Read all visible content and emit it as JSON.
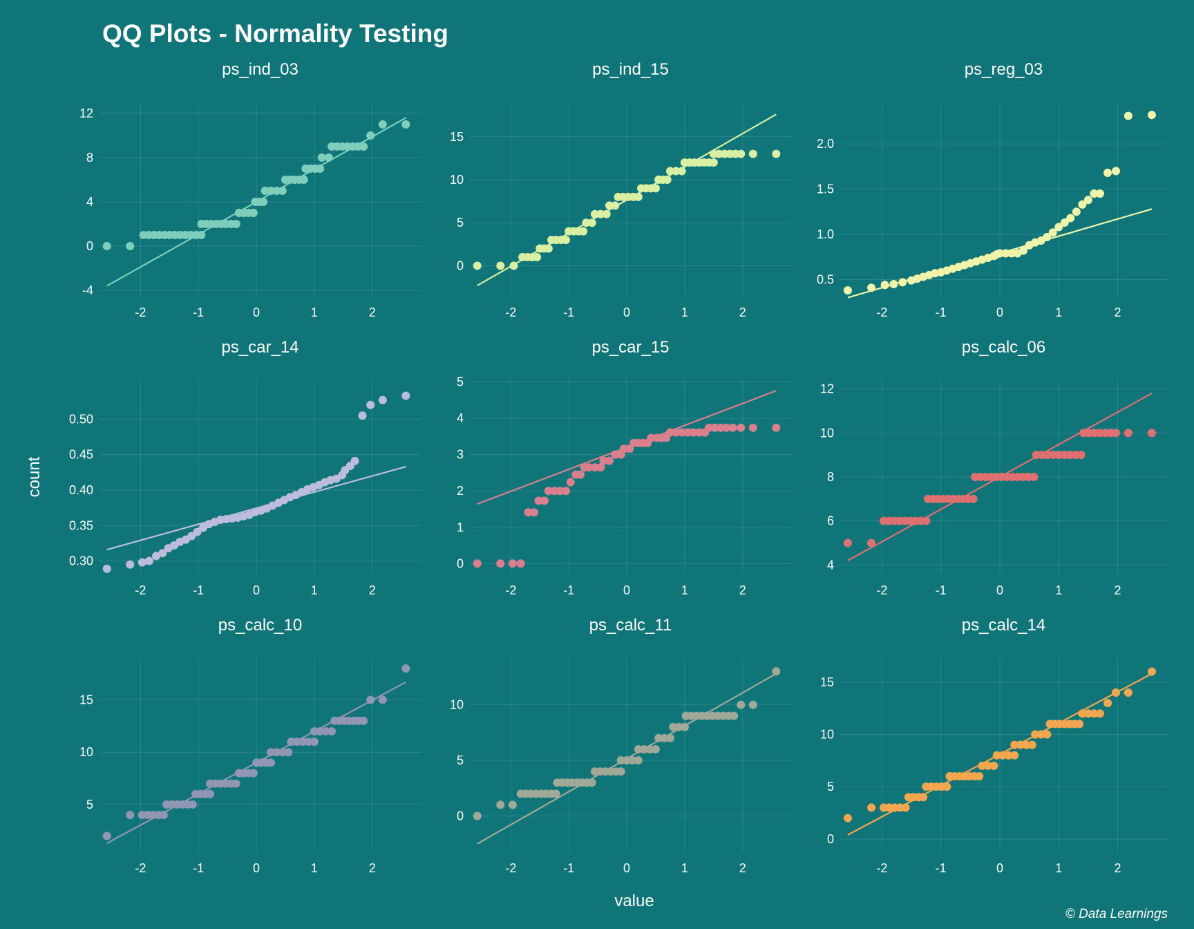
{
  "title": "QQ Plots - Normality Testing",
  "xlabel": "value",
  "ylabel": "count",
  "caption": "© Data Learnings",
  "chart_data": [
    {
      "type": "scatter",
      "title": "ps_ind_03",
      "color": "#7fcdbb",
      "xlim": [
        -2.72,
        2.85
      ],
      "ylim": [
        -4.5,
        13
      ],
      "xticks": [
        -2,
        -1,
        0,
        1,
        2
      ],
      "yticks": [
        -4,
        0,
        4,
        8,
        12
      ],
      "ytick_labels": [
        "-4",
        "0",
        "4",
        "8",
        "12"
      ],
      "line": [
        [
          -2.58,
          -3.6
        ],
        [
          2.58,
          11.6
        ]
      ],
      "steps": [
        [
          -2.58,
          -2.58,
          0
        ],
        [
          -2.18,
          -2.18,
          0
        ],
        [
          -1.95,
          -0.95,
          1
        ],
        [
          -0.95,
          -0.35,
          2
        ],
        [
          -0.3,
          -0.05,
          3
        ],
        [
          -0.02,
          0.12,
          4
        ],
        [
          0.15,
          0.45,
          5
        ],
        [
          0.5,
          0.82,
          6
        ],
        [
          0.85,
          1.1,
          7
        ],
        [
          1.13,
          1.25,
          8
        ],
        [
          1.3,
          1.85,
          9
        ],
        [
          1.97,
          1.97,
          10
        ],
        [
          2.18,
          2.18,
          11
        ],
        [
          2.58,
          2.58,
          11
        ]
      ]
    },
    {
      "type": "scatter",
      "title": "ps_ind_15",
      "color": "#d9f0a3",
      "xlim": [
        -2.72,
        2.85
      ],
      "ylim": [
        -3.5,
        19
      ],
      "xticks": [
        -2,
        -1,
        0,
        1,
        2
      ],
      "yticks": [
        0,
        5,
        10,
        15
      ],
      "ytick_labels": [
        "0",
        "5",
        "10",
        "15"
      ],
      "line": [
        [
          -2.58,
          -2.3
        ],
        [
          2.58,
          17.6
        ]
      ],
      "steps": [
        [
          -2.58,
          -2.58,
          0
        ],
        [
          -2.18,
          -2.18,
          0
        ],
        [
          -1.95,
          -1.95,
          0
        ],
        [
          -1.8,
          -1.55,
          1
        ],
        [
          -1.5,
          -1.35,
          2
        ],
        [
          -1.3,
          -1.05,
          3
        ],
        [
          -1.0,
          -0.75,
          4
        ],
        [
          -0.7,
          -0.6,
          5
        ],
        [
          -0.55,
          -0.35,
          6
        ],
        [
          -0.3,
          -0.2,
          7
        ],
        [
          -0.15,
          0.2,
          8
        ],
        [
          0.25,
          0.5,
          9
        ],
        [
          0.55,
          0.7,
          10
        ],
        [
          0.75,
          0.95,
          11
        ],
        [
          1.0,
          1.5,
          12
        ],
        [
          1.5,
          1.97,
          13
        ],
        [
          2.18,
          2.18,
          13
        ],
        [
          2.58,
          2.58,
          13
        ]
      ]
    },
    {
      "type": "scatter",
      "title": "ps_reg_03",
      "color": "#f0f4a8",
      "xlim": [
        -2.72,
        2.85
      ],
      "ylim": [
        0.32,
        2.46
      ],
      "xticks": [
        -2,
        -1,
        0,
        1,
        2
      ],
      "yticks": [
        0.5,
        1.0,
        1.5,
        2.0
      ],
      "ytick_labels": [
        "0.5",
        "1.0",
        "1.5",
        "2.0"
      ],
      "line": [
        [
          -2.58,
          0.3
        ],
        [
          2.58,
          1.28
        ]
      ],
      "points": [
        [
          -2.58,
          0.38
        ],
        [
          -2.18,
          0.41
        ],
        [
          -1.95,
          0.44
        ],
        [
          -1.8,
          0.45
        ],
        [
          -1.65,
          0.47
        ],
        [
          -1.5,
          0.49
        ],
        [
          -1.4,
          0.51
        ],
        [
          -1.3,
          0.53
        ],
        [
          -1.2,
          0.55
        ],
        [
          -1.1,
          0.57
        ],
        [
          -1.0,
          0.58
        ],
        [
          -0.9,
          0.6
        ],
        [
          -0.8,
          0.62
        ],
        [
          -0.7,
          0.64
        ],
        [
          -0.6,
          0.66
        ],
        [
          -0.5,
          0.68
        ],
        [
          -0.4,
          0.7
        ],
        [
          -0.3,
          0.72
        ],
        [
          -0.2,
          0.74
        ],
        [
          -0.1,
          0.76
        ],
        [
          -0.05,
          0.78
        ],
        [
          0.0,
          0.79
        ],
        [
          0.1,
          0.79
        ],
        [
          0.2,
          0.79
        ],
        [
          0.3,
          0.79
        ],
        [
          0.4,
          0.82
        ],
        [
          0.5,
          0.88
        ],
        [
          0.6,
          0.91
        ],
        [
          0.7,
          0.93
        ],
        [
          0.8,
          0.97
        ],
        [
          0.9,
          1.02
        ],
        [
          1.0,
          1.08
        ],
        [
          1.1,
          1.13
        ],
        [
          1.2,
          1.18
        ],
        [
          1.3,
          1.25
        ],
        [
          1.4,
          1.33
        ],
        [
          1.5,
          1.38
        ],
        [
          1.6,
          1.45
        ],
        [
          1.7,
          1.45
        ],
        [
          1.83,
          1.68
        ],
        [
          1.97,
          1.7
        ],
        [
          2.18,
          2.31
        ],
        [
          2.58,
          2.32
        ]
      ]
    },
    {
      "type": "scatter",
      "title": "ps_car_14",
      "color": "#bcbddc",
      "xlim": [
        -2.72,
        2.85
      ],
      "ylim": [
        0.282,
        0.555
      ],
      "xticks": [
        -2,
        -1,
        0,
        1,
        2
      ],
      "yticks": [
        0.3,
        0.35,
        0.4,
        0.45,
        0.5
      ],
      "ytick_labels": [
        "0.30",
        "0.35",
        "0.40",
        "0.45",
        "0.50"
      ],
      "line": [
        [
          -2.58,
          0.316
        ],
        [
          2.58,
          0.433
        ]
      ],
      "points": [
        [
          -2.58,
          0.289
        ],
        [
          -2.18,
          0.295
        ],
        [
          -1.97,
          0.298
        ],
        [
          -1.85,
          0.3
        ],
        [
          -1.73,
          0.307
        ],
        [
          -1.62,
          0.311
        ],
        [
          -1.52,
          0.318
        ],
        [
          -1.42,
          0.322
        ],
        [
          -1.32,
          0.327
        ],
        [
          -1.22,
          0.33
        ],
        [
          -1.12,
          0.335
        ],
        [
          -1.02,
          0.341
        ],
        [
          -0.92,
          0.347
        ],
        [
          -0.82,
          0.352
        ],
        [
          -0.72,
          0.355
        ],
        [
          -0.62,
          0.358
        ],
        [
          -0.52,
          0.359
        ],
        [
          -0.42,
          0.36
        ],
        [
          -0.32,
          0.361
        ],
        [
          -0.22,
          0.363
        ],
        [
          -0.12,
          0.365
        ],
        [
          -0.02,
          0.369
        ],
        [
          0.08,
          0.371
        ],
        [
          0.18,
          0.374
        ],
        [
          0.28,
          0.378
        ],
        [
          0.38,
          0.382
        ],
        [
          0.48,
          0.386
        ],
        [
          0.58,
          0.39
        ],
        [
          0.68,
          0.393
        ],
        [
          0.78,
          0.397
        ],
        [
          0.88,
          0.401
        ],
        [
          0.98,
          0.404
        ],
        [
          1.08,
          0.407
        ],
        [
          1.18,
          0.411
        ],
        [
          1.28,
          0.414
        ],
        [
          1.38,
          0.416
        ],
        [
          1.48,
          0.421
        ],
        [
          1.53,
          0.428
        ],
        [
          1.62,
          0.434
        ],
        [
          1.7,
          0.441
        ],
        [
          1.83,
          0.505
        ],
        [
          1.97,
          0.52
        ],
        [
          2.18,
          0.527
        ],
        [
          2.58,
          0.533
        ]
      ]
    },
    {
      "type": "scatter",
      "title": "ps_car_15",
      "color": "#db7f8e",
      "xlim": [
        -2.72,
        2.85
      ],
      "ylim": [
        -0.28,
        5.05
      ],
      "xticks": [
        -2,
        -1,
        0,
        1,
        2
      ],
      "yticks": [
        0,
        1,
        2,
        3,
        4,
        5
      ],
      "ytick_labels": [
        "0",
        "1",
        "2",
        "3",
        "4",
        "5"
      ],
      "line": [
        [
          -2.58,
          1.64
        ],
        [
          2.58,
          4.76
        ]
      ],
      "points": [
        [
          -2.58,
          0
        ],
        [
          -2.18,
          0
        ],
        [
          -1.97,
          0
        ],
        [
          -1.83,
          0
        ],
        [
          -1.7,
          1.41
        ],
        [
          -1.6,
          1.41
        ],
        [
          -1.52,
          1.73
        ],
        [
          -1.42,
          1.73
        ],
        [
          -1.35,
          2.0
        ],
        [
          -1.25,
          2.0
        ],
        [
          -1.15,
          2.0
        ],
        [
          -1.05,
          2.0
        ],
        [
          -0.97,
          2.24
        ],
        [
          -0.88,
          2.45
        ],
        [
          -0.8,
          2.45
        ],
        [
          -0.73,
          2.65
        ],
        [
          -0.65,
          2.65
        ],
        [
          -0.55,
          2.65
        ],
        [
          -0.45,
          2.65
        ],
        [
          -0.4,
          2.83
        ],
        [
          -0.3,
          2.83
        ],
        [
          -0.2,
          3.0
        ],
        [
          -0.1,
          3.0
        ],
        [
          -0.05,
          3.16
        ],
        [
          0.05,
          3.16
        ],
        [
          0.12,
          3.32
        ],
        [
          0.2,
          3.32
        ],
        [
          0.28,
          3.32
        ],
        [
          0.36,
          3.32
        ],
        [
          0.42,
          3.46
        ],
        [
          0.52,
          3.46
        ],
        [
          0.6,
          3.46
        ],
        [
          0.68,
          3.46
        ],
        [
          0.75,
          3.61
        ],
        [
          0.85,
          3.61
        ],
        [
          0.95,
          3.61
        ],
        [
          1.05,
          3.61
        ],
        [
          1.15,
          3.61
        ],
        [
          1.25,
          3.61
        ],
        [
          1.35,
          3.61
        ],
        [
          1.42,
          3.74
        ],
        [
          1.52,
          3.74
        ],
        [
          1.62,
          3.74
        ],
        [
          1.72,
          3.74
        ],
        [
          1.83,
          3.74
        ],
        [
          1.97,
          3.74
        ],
        [
          2.18,
          3.74
        ],
        [
          2.58,
          3.74
        ]
      ]
    },
    {
      "type": "scatter",
      "title": "ps_calc_06",
      "color": "#e07070",
      "xlim": [
        -2.72,
        2.85
      ],
      "ylim": [
        3.6,
        12.4
      ],
      "xticks": [
        -2,
        -1,
        0,
        1,
        2
      ],
      "yticks": [
        4,
        6,
        8,
        10,
        12
      ],
      "ytick_labels": [
        "4",
        "6",
        "8",
        "10",
        "12"
      ],
      "line": [
        [
          -2.58,
          4.2
        ],
        [
          2.58,
          11.8
        ]
      ],
      "steps": [
        [
          -2.58,
          -2.58,
          5
        ],
        [
          -2.18,
          -2.18,
          5
        ],
        [
          -1.97,
          -1.25,
          6
        ],
        [
          -1.22,
          -0.45,
          7
        ],
        [
          -0.42,
          0.58,
          8
        ],
        [
          0.62,
          1.38,
          9
        ],
        [
          1.42,
          1.97,
          10
        ],
        [
          2.18,
          2.18,
          10
        ],
        [
          2.58,
          2.58,
          10
        ]
      ]
    },
    {
      "type": "scatter",
      "title": "ps_calc_10",
      "color": "#9196b3",
      "xlim": [
        -2.72,
        2.85
      ],
      "ylim": [
        0.5,
        19
      ],
      "xticks": [
        -2,
        -1,
        0,
        1,
        2
      ],
      "yticks": [
        5,
        10,
        15
      ],
      "ytick_labels": [
        "5",
        "10",
        "15"
      ],
      "line": [
        [
          -2.58,
          1.3
        ],
        [
          2.58,
          16.7
        ]
      ],
      "steps": [
        [
          -2.58,
          -2.58,
          2
        ],
        [
          -2.18,
          -2.18,
          4
        ],
        [
          -1.97,
          -1.6,
          4
        ],
        [
          -1.55,
          -1.1,
          5
        ],
        [
          -1.05,
          -0.8,
          6
        ],
        [
          -0.8,
          -0.35,
          7
        ],
        [
          -0.3,
          -0.05,
          8
        ],
        [
          0.0,
          0.25,
          9
        ],
        [
          0.25,
          0.55,
          10
        ],
        [
          0.6,
          1.0,
          11
        ],
        [
          1.0,
          1.3,
          12
        ],
        [
          1.35,
          1.85,
          13
        ],
        [
          1.97,
          1.97,
          15
        ],
        [
          2.18,
          2.18,
          15
        ],
        [
          2.58,
          2.58,
          18
        ]
      ]
    },
    {
      "type": "scatter",
      "title": "ps_calc_11",
      "color": "#a0a898",
      "xlim": [
        -2.72,
        2.85
      ],
      "ylim": [
        -3.2,
        14.2
      ],
      "xticks": [
        -2,
        -1,
        0,
        1,
        2
      ],
      "yticks": [
        0,
        5,
        10
      ],
      "ytick_labels": [
        "0",
        "5",
        "10"
      ],
      "line": [
        [
          -2.58,
          -2.5
        ],
        [
          2.58,
          12.8
        ]
      ],
      "steps": [
        [
          -2.58,
          -2.58,
          0
        ],
        [
          -2.18,
          -2.18,
          1
        ],
        [
          -1.97,
          -1.97,
          1
        ],
        [
          -1.83,
          -1.22,
          2
        ],
        [
          -1.2,
          -0.6,
          3
        ],
        [
          -0.55,
          -0.1,
          4
        ],
        [
          -0.1,
          0.2,
          5
        ],
        [
          0.2,
          0.5,
          6
        ],
        [
          0.55,
          0.75,
          7
        ],
        [
          0.8,
          1.0,
          8
        ],
        [
          1.02,
          1.85,
          9
        ],
        [
          1.97,
          1.97,
          10
        ],
        [
          2.18,
          2.18,
          10
        ],
        [
          2.58,
          2.58,
          13
        ]
      ]
    },
    {
      "type": "scatter",
      "title": "ps_calc_14",
      "color": "#f4a64e",
      "xlim": [
        -2.72,
        2.85
      ],
      "ylim": [
        -1.2,
        17.3
      ],
      "xticks": [
        -2,
        -1,
        0,
        1,
        2
      ],
      "yticks": [
        0,
        5,
        10,
        15
      ],
      "ytick_labels": [
        "0",
        "5",
        "10",
        "15"
      ],
      "line": [
        [
          -2.58,
          0.4
        ],
        [
          2.58,
          15.8
        ]
      ],
      "steps": [
        [
          -2.58,
          -2.58,
          2
        ],
        [
          -2.18,
          -2.18,
          3
        ],
        [
          -1.97,
          -1.6,
          3
        ],
        [
          -1.55,
          -1.3,
          4
        ],
        [
          -1.25,
          -0.9,
          5
        ],
        [
          -0.85,
          -0.35,
          6
        ],
        [
          -0.3,
          -0.1,
          7
        ],
        [
          -0.05,
          0.25,
          8
        ],
        [
          0.25,
          0.55,
          9
        ],
        [
          0.6,
          0.8,
          10
        ],
        [
          0.85,
          1.35,
          11
        ],
        [
          1.4,
          1.7,
          12
        ],
        [
          1.83,
          1.83,
          13
        ],
        [
          1.97,
          1.97,
          14
        ],
        [
          2.18,
          2.18,
          14
        ],
        [
          2.58,
          2.58,
          16
        ]
      ]
    }
  ]
}
